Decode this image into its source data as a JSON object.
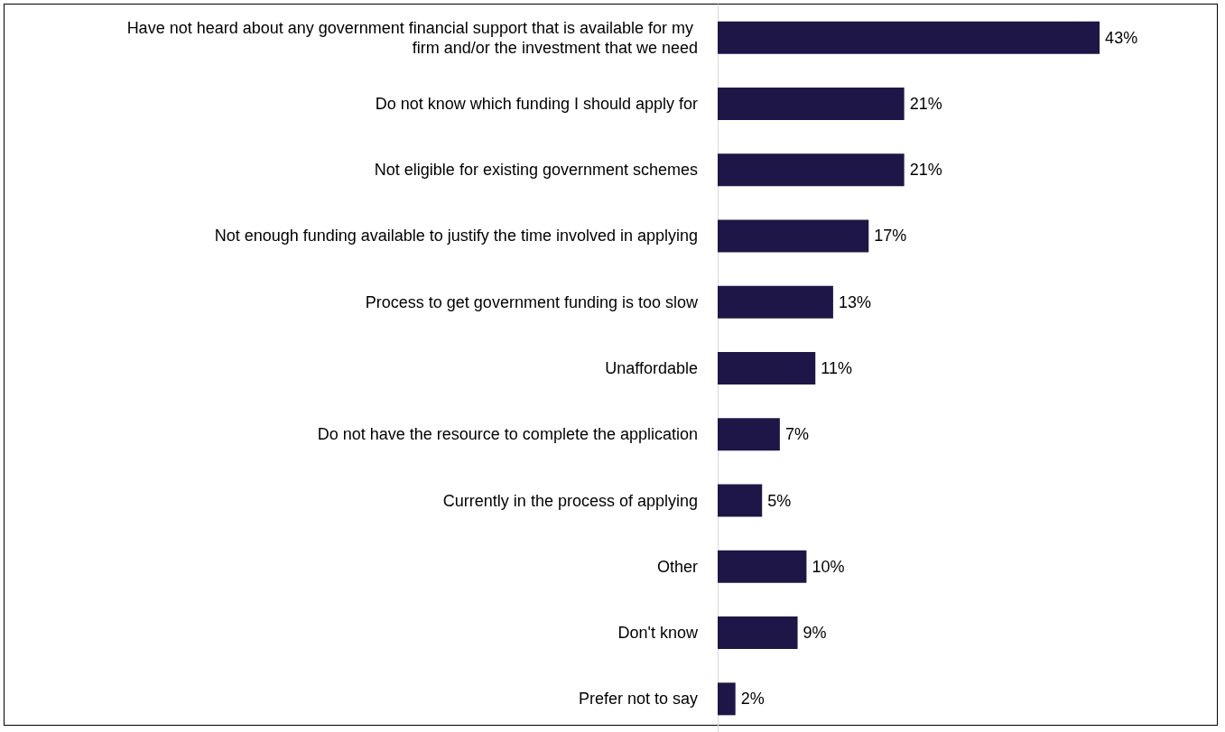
{
  "chart_data": {
    "type": "bar",
    "orientation": "horizontal",
    "color": "#1e1646",
    "categories": [
      "Have not heard about any government financial support that is available for my firm and/or the investment that we need",
      "Do not know which funding I should apply for",
      "Not eligible for existing government schemes",
      "Not enough funding available to justify the time involved in applying",
      "Process to get government funding is too slow",
      "Unaffordable",
      "Do not have the resource to complete the application",
      "Currently in the process of applying",
      "Other",
      "Don't know",
      "Prefer not to say"
    ],
    "values": [
      43,
      21,
      21,
      17,
      13,
      11,
      7,
      5,
      10,
      9,
      2
    ],
    "value_labels": [
      "43%",
      "21%",
      "21%",
      "17%",
      "13%",
      "11%",
      "7%",
      "5%",
      "10%",
      "9%",
      "2%"
    ]
  }
}
